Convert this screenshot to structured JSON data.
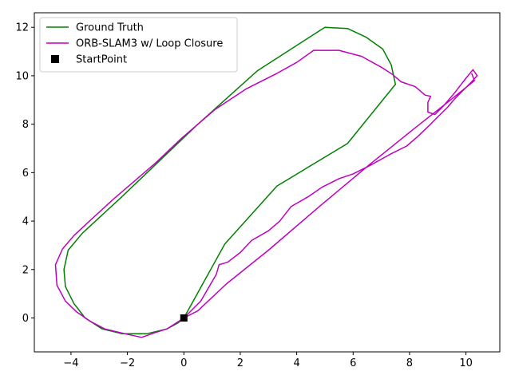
{
  "chart_data": {
    "type": "line",
    "title": "",
    "xlabel": "",
    "ylabel": "",
    "xlim": [
      -5.3,
      11.2
    ],
    "ylim": [
      -1.4,
      12.6
    ],
    "x_ticks": [
      -4,
      -2,
      0,
      2,
      4,
      6,
      8,
      10
    ],
    "y_ticks": [
      0,
      2,
      4,
      6,
      8,
      10,
      12
    ],
    "x_tick_labels": [
      "−4",
      "−2",
      "0",
      "2",
      "4",
      "6",
      "8",
      "10"
    ],
    "y_tick_labels": [
      "0",
      "2",
      "4",
      "6",
      "8",
      "10",
      "12"
    ],
    "grid": false,
    "legend_position": "top-left",
    "series": [
      {
        "name": "Ground Truth",
        "color": "#008000",
        "points": [
          [
            0,
            0
          ],
          [
            1.45,
            3.05
          ],
          [
            3.3,
            5.45
          ],
          [
            5.8,
            7.2
          ],
          [
            7.5,
            9.65
          ],
          [
            7.35,
            10.45
          ],
          [
            7.05,
            11.1
          ],
          [
            6.45,
            11.6
          ],
          [
            5.8,
            11.95
          ],
          [
            5.0,
            12.0
          ],
          [
            2.6,
            10.2
          ],
          [
            0.5,
            8.0
          ],
          [
            -2.2,
            5.0
          ],
          [
            -3.6,
            3.5
          ],
          [
            -4.1,
            2.8
          ],
          [
            -4.25,
            2.0
          ],
          [
            -4.2,
            1.3
          ],
          [
            -3.9,
            0.6
          ],
          [
            -3.5,
            0.0
          ],
          [
            -2.9,
            -0.45
          ],
          [
            -2.2,
            -0.65
          ],
          [
            -1.3,
            -0.65
          ],
          [
            -0.6,
            -0.45
          ],
          [
            -0.2,
            -0.2
          ],
          [
            0,
            0
          ]
        ]
      },
      {
        "name": "ORB-SLAM3 w/ Loop Closure",
        "color": "#bf00bf",
        "points": [
          [
            0,
            0
          ],
          [
            0.6,
            0.7
          ],
          [
            0.9,
            1.3
          ],
          [
            1.15,
            1.8
          ],
          [
            1.25,
            2.2
          ],
          [
            1.55,
            2.3
          ],
          [
            2.0,
            2.7
          ],
          [
            2.4,
            3.2
          ],
          [
            3.0,
            3.6
          ],
          [
            3.4,
            4.0
          ],
          [
            3.8,
            4.6
          ],
          [
            4.4,
            5.0
          ],
          [
            4.9,
            5.4
          ],
          [
            5.5,
            5.75
          ],
          [
            6.0,
            5.95
          ],
          [
            6.6,
            6.3
          ],
          [
            7.3,
            6.75
          ],
          [
            7.9,
            7.1
          ],
          [
            8.3,
            7.5
          ],
          [
            8.7,
            7.95
          ],
          [
            9.0,
            8.3
          ],
          [
            9.35,
            8.7
          ],
          [
            9.6,
            9.05
          ],
          [
            9.9,
            9.4
          ],
          [
            10.2,
            9.75
          ],
          [
            10.4,
            10.0
          ],
          [
            10.25,
            10.25
          ],
          [
            10.0,
            9.9
          ],
          [
            9.6,
            9.3
          ],
          [
            9.2,
            8.75
          ],
          [
            8.9,
            8.4
          ],
          [
            8.65,
            8.5
          ],
          [
            8.65,
            8.9
          ],
          [
            8.75,
            9.15
          ],
          [
            8.55,
            9.2
          ],
          [
            8.2,
            9.55
          ],
          [
            7.7,
            9.75
          ],
          [
            7.4,
            10.05
          ],
          [
            7.0,
            10.35
          ],
          [
            6.3,
            10.8
          ],
          [
            5.5,
            11.05
          ],
          [
            4.6,
            11.05
          ],
          [
            4.0,
            10.55
          ],
          [
            3.3,
            10.1
          ],
          [
            2.2,
            9.45
          ],
          [
            1.1,
            8.6
          ],
          [
            -0.1,
            7.4
          ],
          [
            -1.0,
            6.4
          ],
          [
            -2.5,
            4.9
          ],
          [
            -3.3,
            4.05
          ],
          [
            -3.9,
            3.4
          ],
          [
            -4.3,
            2.85
          ],
          [
            -4.55,
            2.2
          ],
          [
            -4.5,
            1.35
          ],
          [
            -4.2,
            0.7
          ],
          [
            -3.8,
            0.25
          ],
          [
            -3.3,
            -0.15
          ],
          [
            -2.8,
            -0.45
          ],
          [
            -2.1,
            -0.65
          ],
          [
            -1.5,
            -0.8
          ],
          [
            -1.0,
            -0.6
          ],
          [
            -0.6,
            -0.45
          ],
          [
            -0.2,
            -0.15
          ],
          [
            0,
            0
          ],
          [
            0.5,
            0.3
          ],
          [
            1.5,
            1.4
          ],
          [
            3.0,
            2.8
          ],
          [
            4.8,
            4.6
          ],
          [
            6.6,
            6.35
          ],
          [
            8.2,
            7.85
          ],
          [
            9.4,
            8.95
          ],
          [
            10.3,
            9.8
          ],
          [
            10.2,
            10.1
          ]
        ]
      },
      {
        "name": "StartPoint",
        "color": "#000000",
        "marker": "square",
        "points": [
          [
            0,
            0
          ]
        ]
      }
    ]
  }
}
